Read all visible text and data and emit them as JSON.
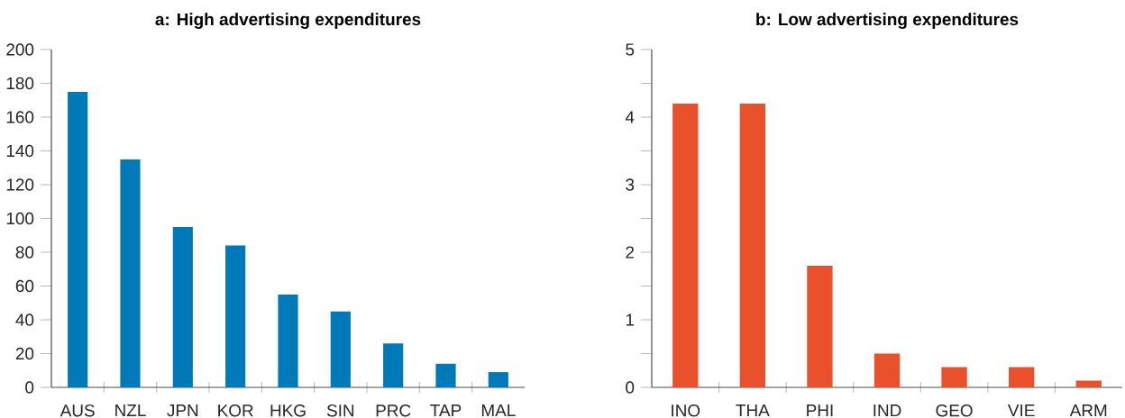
{
  "chart_data": [
    {
      "type": "bar",
      "title": "a: High advertising expenditures",
      "categories": [
        "AUS",
        "NZL",
        "JPN",
        "KOR",
        "HKG",
        "SIN",
        "PRC",
        "TAP",
        "MAL"
      ],
      "values": [
        175,
        135,
        95,
        84,
        55,
        45,
        26,
        14,
        9
      ],
      "color": "#0079b8",
      "ylim": [
        0,
        200
      ],
      "yticks": [
        0,
        20,
        40,
        60,
        80,
        100,
        120,
        140,
        160,
        180,
        200
      ]
    },
    {
      "type": "bar",
      "title": "b: Low advertising  expenditures",
      "categories": [
        "INO",
        "THA",
        "PHI",
        "IND",
        "GEO",
        "VIE",
        "ARM"
      ],
      "values": [
        4.2,
        4.2,
        1.8,
        0.5,
        0.3,
        0.3,
        0.1
      ],
      "color": "#e8512b",
      "ylim": [
        0,
        5
      ],
      "yticks": [
        0,
        {
          "value": 0.5,
          "label": null
        },
        1,
        {
          "value": 1.5,
          "label": null
        },
        2,
        {
          "value": 2.5,
          "label": null
        },
        3,
        {
          "value": 3.5,
          "label": null
        },
        4,
        {
          "value": 4.5,
          "label": null
        },
        5
      ]
    }
  ]
}
